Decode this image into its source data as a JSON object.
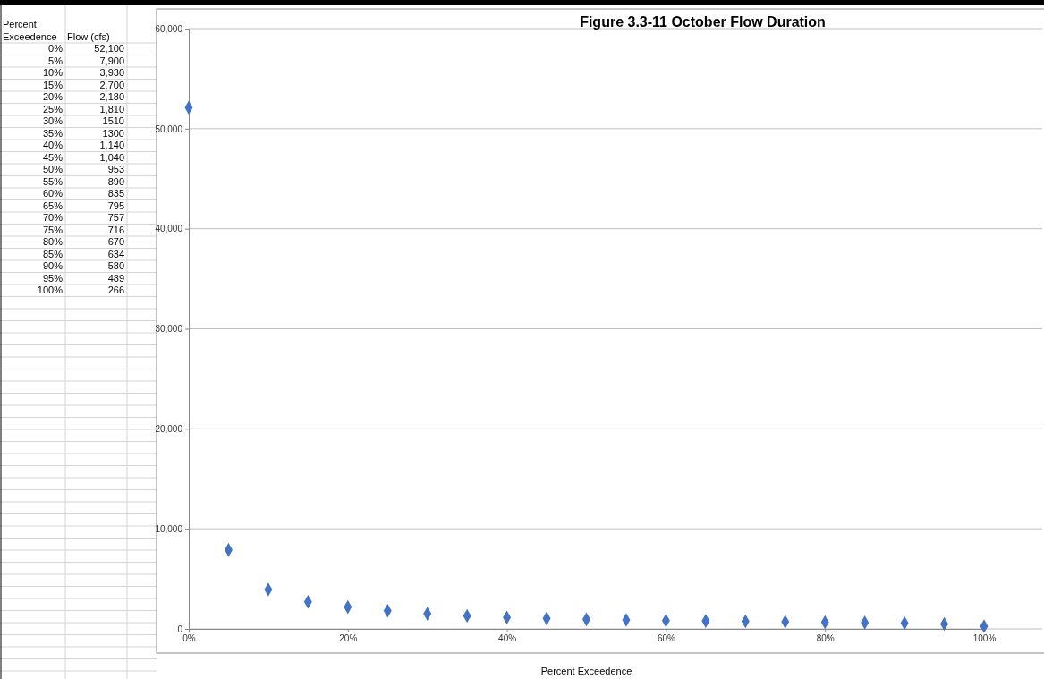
{
  "chart_data": {
    "type": "scatter",
    "title": "Figure 3.3-11 October Flow Duration",
    "xlabel": "Percent Exceedence",
    "annotations": [
      "Percent Exceedence",
      "Flow (cfs)",
      "0%",
      "52,100",
      "5%",
      "7,900",
      "10%",
      "3,930",
      "15%",
      "2,700",
      "20%",
      "2,180",
      "25%",
      "1,810",
      "30%",
      "1510",
      "35%",
      "1300",
      "40%",
      "1,140",
      "45%",
      "1,040",
      "50%",
      "953",
      "55%",
      "890",
      "60%",
      "835",
      "65%",
      "795",
      "70%",
      "757",
      "75%",
      "716",
      "80%",
      "670",
      "85%",
      "634",
      "90%",
      "580",
      "95%",
      "489",
      "100%",
      "266"
    ],
    "x": [
      0,
      0.05,
      0.1,
      0.15,
      0.2,
      0.25,
      0.3,
      0.35,
      0.4,
      0.45,
      0.5,
      0.55,
      0.6,
      0.65,
      0.7,
      0.75,
      0.8,
      0.85,
      0.9,
      0.95,
      1
    ],
    "values": [
      52100,
      7900,
      3930,
      2700,
      2180,
      1810,
      1510,
      1300,
      1140,
      1040,
      953,
      890,
      835,
      795,
      757,
      716,
      670,
      634,
      580,
      489,
      266
    ],
    "color": "#4472c4",
    "marker": "diamond",
    "xlim": [
      0,
      1
    ],
    "xticks": [
      {
        "value": 0,
        "label": "0%"
      },
      {
        "value": 0.2,
        "label": "20%"
      },
      {
        "value": 0.4,
        "label": "40%"
      },
      {
        "value": 0.6,
        "label": "60%"
      },
      {
        "value": 0.8,
        "label": "80%"
      },
      {
        "value": 1,
        "label": "100%"
      }
    ],
    "ylim": [
      0,
      60000
    ],
    "yticks": [
      {
        "value": 0,
        "label": "0"
      },
      {
        "value": 10000,
        "label": "10,000"
      },
      {
        "value": 20000,
        "label": "20,000"
      },
      {
        "value": 30000,
        "label": "30,000"
      },
      {
        "value": 40000,
        "label": "40,000"
      },
      {
        "value": 50000,
        "label": "50,000"
      },
      {
        "value": 60000,
        "label": "60,000"
      }
    ],
    "grid": "y"
  }
}
